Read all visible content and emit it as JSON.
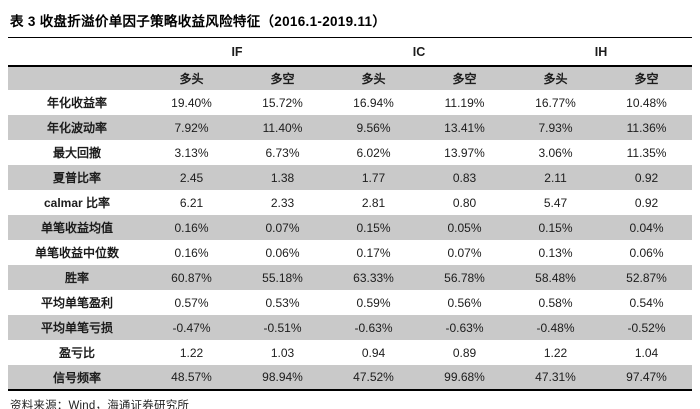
{
  "title": "表 3 收盘折溢价单因子策略收益风险特征（2016.1-2019.11）",
  "source": "资料来源：Wind，海通证券研究所",
  "colors": {
    "stripe_gray": "#c9c9c9",
    "rule_black": "#000000"
  },
  "table": {
    "group_headers": [
      "IF",
      "IC",
      "IH"
    ],
    "sub_headers": [
      "多头",
      "多空",
      "多头",
      "多空",
      "多头",
      "多空"
    ],
    "rows": [
      {
        "label": "年化收益率",
        "values": [
          "19.40%",
          "15.72%",
          "16.94%",
          "11.19%",
          "16.77%",
          "10.48%"
        ]
      },
      {
        "label": "年化波动率",
        "values": [
          "7.92%",
          "11.40%",
          "9.56%",
          "13.41%",
          "7.93%",
          "11.36%"
        ]
      },
      {
        "label": "最大回撤",
        "values": [
          "3.13%",
          "6.73%",
          "6.02%",
          "13.97%",
          "3.06%",
          "11.35%"
        ]
      },
      {
        "label": "夏普比率",
        "values": [
          "2.45",
          "1.38",
          "1.77",
          "0.83",
          "2.11",
          "0.92"
        ]
      },
      {
        "label": "calmar 比率",
        "values": [
          "6.21",
          "2.33",
          "2.81",
          "0.80",
          "5.47",
          "0.92"
        ]
      },
      {
        "label": "单笔收益均值",
        "values": [
          "0.16%",
          "0.07%",
          "0.15%",
          "0.05%",
          "0.15%",
          "0.04%"
        ]
      },
      {
        "label": "单笔收益中位数",
        "values": [
          "0.16%",
          "0.06%",
          "0.17%",
          "0.07%",
          "0.13%",
          "0.06%"
        ]
      },
      {
        "label": "胜率",
        "values": [
          "60.87%",
          "55.18%",
          "63.33%",
          "56.78%",
          "58.48%",
          "52.87%"
        ]
      },
      {
        "label": "平均单笔盈利",
        "values": [
          "0.57%",
          "0.53%",
          "0.59%",
          "0.56%",
          "0.58%",
          "0.54%"
        ]
      },
      {
        "label": "平均单笔亏损",
        "values": [
          "-0.47%",
          "-0.51%",
          "-0.63%",
          "-0.63%",
          "-0.48%",
          "-0.52%"
        ]
      },
      {
        "label": "盈亏比",
        "values": [
          "1.22",
          "1.03",
          "0.94",
          "0.89",
          "1.22",
          "1.04"
        ]
      },
      {
        "label": "信号频率",
        "values": [
          "48.57%",
          "98.94%",
          "47.52%",
          "99.68%",
          "47.31%",
          "97.47%"
        ]
      }
    ]
  }
}
